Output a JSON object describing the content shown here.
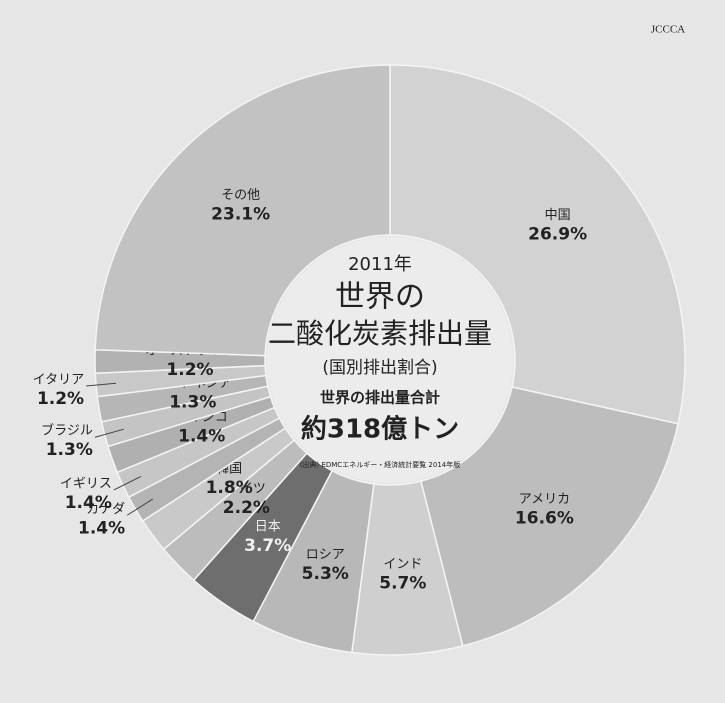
{
  "chart_data": {
    "type": "donut",
    "logo": "JCCCA",
    "center_texts": [
      "2011年",
      "世界の",
      "二酸化炭素排出量",
      "(国別排出割合)",
      "世界の排出量合計",
      "約318億トン"
    ],
    "source": "(出典) EDMCエネルギー・経済統計要覧 2014年版",
    "categories": [
      "中国",
      "アメリカ",
      "インド",
      "ロシア",
      "日本",
      "ドイツ",
      "韓国",
      "カナダ",
      "イギリス",
      "メキシコ",
      "ブラジル",
      "インドネシア",
      "イタリア",
      "オーストラリア",
      "その他"
    ],
    "values": [
      26.9,
      16.6,
      5.7,
      5.3,
      3.7,
      2.2,
      1.8,
      1.4,
      1.4,
      1.4,
      1.3,
      1.3,
      1.2,
      1.2,
      23.1
    ],
    "value_labels": [
      "26.9%",
      "16.6%",
      "5.7%",
      "5.3%",
      "3.7%",
      "2.2%",
      "1.8%",
      "1.4%",
      "1.4%",
      "1.4%",
      "1.3%",
      "1.3%",
      "1.2%",
      "1.2%",
      "23.1%"
    ],
    "colors": [
      "#d2d2d2",
      "#bdbdbd",
      "#cfcfcf",
      "#b8b8b8",
      "#6e6e6e",
      "#bcbcbc",
      "#c9c9c9",
      "#b4b4b4",
      "#c6c6c6",
      "#b0b0b0",
      "#c4c4c4",
      "#b6b6b6",
      "#c8c8c8",
      "#b2b2b2",
      "#c2c2c2"
    ]
  }
}
